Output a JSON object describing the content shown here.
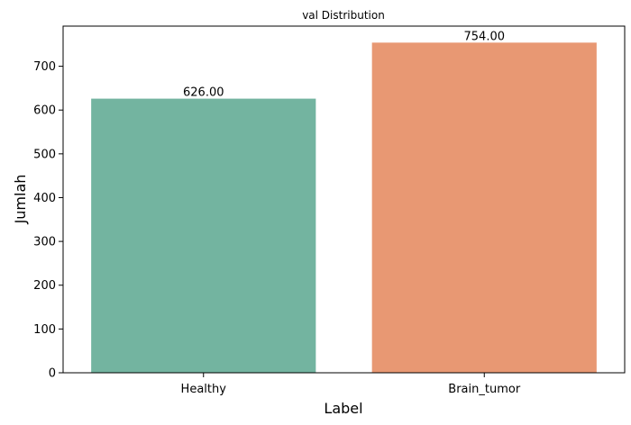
{
  "chart_data": {
    "type": "bar",
    "title": "val Distribution",
    "xlabel": "Label",
    "ylabel": "Jumlah",
    "categories": [
      "Healthy",
      "Brain_tumor"
    ],
    "values": [
      626,
      754
    ],
    "value_labels": [
      "626.00",
      "754.00"
    ],
    "colors": [
      "#73b4a0",
      "#e89873"
    ],
    "ylim": [
      0,
      791.7
    ],
    "yticks": [
      0,
      100,
      200,
      300,
      400,
      500,
      600,
      700
    ],
    "ytick_labels": [
      "0",
      "100",
      "200",
      "300",
      "400",
      "500",
      "600",
      "700"
    ],
    "grid": false,
    "legend": "none"
  }
}
